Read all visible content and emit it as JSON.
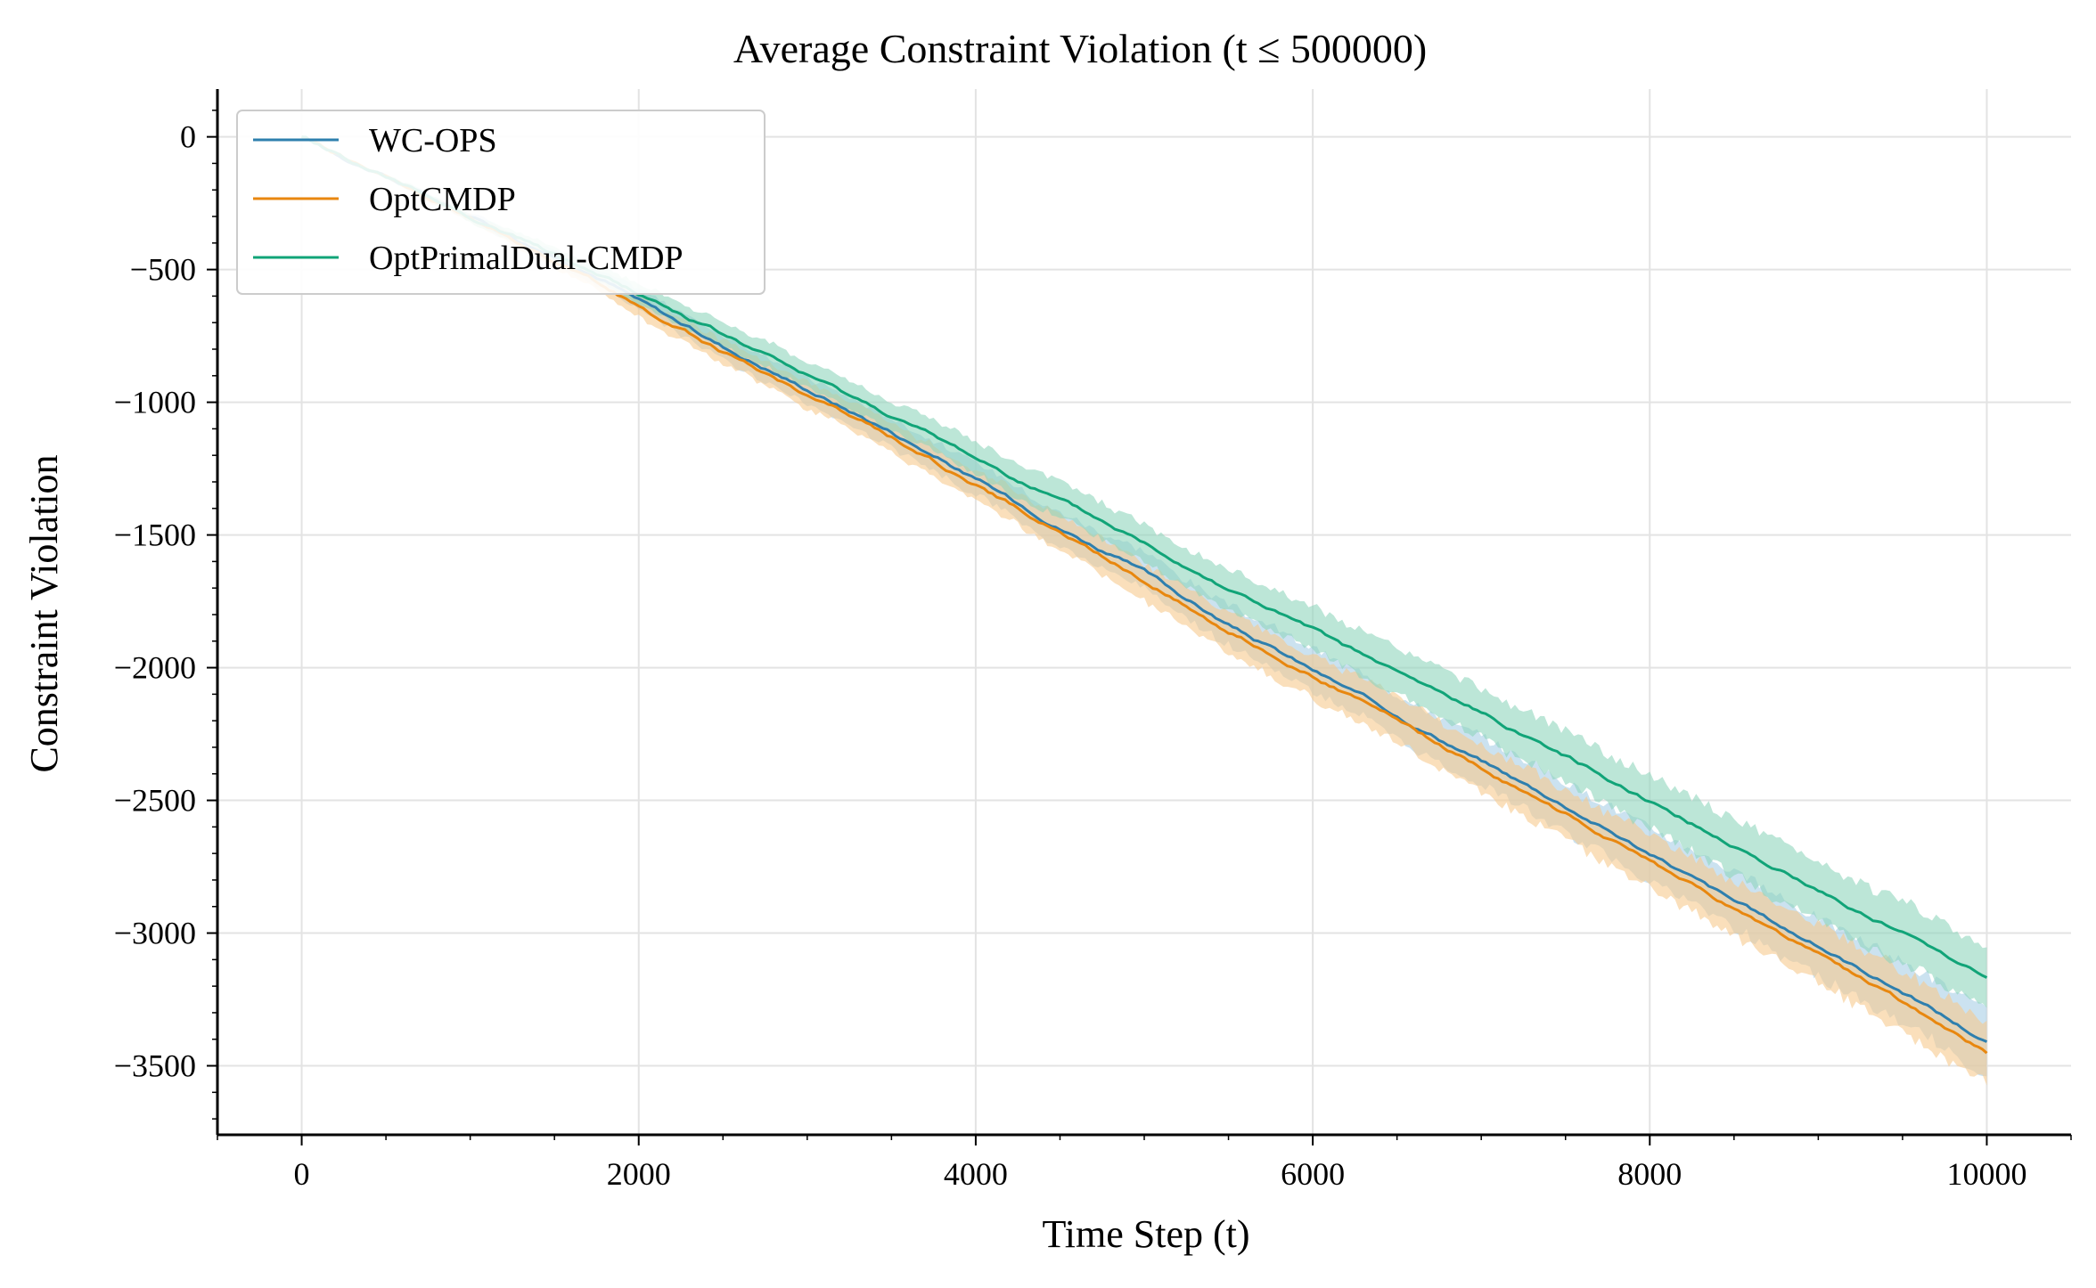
{
  "chart_data": {
    "type": "line",
    "title": "Average Constraint Violation (t ≤ 500000)",
    "xlabel": "Time Step (t)",
    "ylabel": "Constraint Violation",
    "xlim": [
      -500,
      10500
    ],
    "ylim": [
      -3760,
      180
    ],
    "xticks": [
      0,
      2000,
      4000,
      6000,
      8000,
      10000
    ],
    "xtick_labels": [
      "0",
      "2000",
      "4000",
      "6000",
      "8000",
      "10000"
    ],
    "yticks": [
      0,
      -500,
      -1000,
      -1500,
      -2000,
      -2500,
      -3000,
      -3500
    ],
    "ytick_labels": [
      "0",
      "−500",
      "−1000",
      "−1500",
      "−2000",
      "−2500",
      "−3000",
      "−3500"
    ],
    "grid": true,
    "legend_position": "top-left",
    "series": [
      {
        "name": "WC-OPS",
        "color": "#2e7fae",
        "band_color": "#a9cfe6",
        "x": [
          0,
          1000,
          1800,
          2000,
          2500,
          3000,
          3500,
          4000,
          4500,
          5000,
          5500,
          6000,
          6500,
          7000,
          7500,
          8000,
          8500,
          9000,
          9500,
          10000
        ],
        "y": [
          0,
          -300,
          -540,
          -615,
          -790,
          -950,
          -1110,
          -1290,
          -1470,
          -1640,
          -1840,
          -2010,
          -2180,
          -2350,
          -2520,
          -2700,
          -2880,
          -3050,
          -3220,
          -3410
        ],
        "band": [
          0,
          15,
          30,
          40,
          45,
          50,
          55,
          60,
          65,
          70,
          75,
          80,
          85,
          90,
          95,
          100,
          105,
          110,
          115,
          120
        ]
      },
      {
        "name": "OptCMDP",
        "color": "#e8870f",
        "band_color": "#f7c98e",
        "x": [
          0,
          1000,
          1800,
          2000,
          2500,
          3000,
          3500,
          4000,
          4500,
          5000,
          5500,
          6000,
          6500,
          7000,
          7500,
          8000,
          8500,
          9000,
          9500,
          10000
        ],
        "y": [
          0,
          -310,
          -560,
          -640,
          -810,
          -970,
          -1130,
          -1310,
          -1490,
          -1670,
          -1860,
          -2030,
          -2200,
          -2380,
          -2550,
          -2730,
          -2910,
          -3080,
          -3260,
          -3450
        ],
        "band": [
          0,
          15,
          30,
          40,
          45,
          50,
          55,
          60,
          65,
          70,
          75,
          80,
          85,
          90,
          95,
          100,
          105,
          110,
          115,
          120
        ]
      },
      {
        "name": "OptPrimalDual-CMDP",
        "color": "#11a478",
        "band_color": "#8fd6bd",
        "x": [
          0,
          1000,
          1800,
          2000,
          2500,
          3000,
          3500,
          4000,
          4500,
          5000,
          5500,
          6000,
          6500,
          7000,
          7500,
          8000,
          8500,
          9000,
          9500,
          10000
        ],
        "y": [
          0,
          -300,
          -530,
          -590,
          -745,
          -900,
          -1050,
          -1210,
          -1370,
          -1530,
          -1700,
          -1860,
          -2020,
          -2170,
          -2330,
          -2500,
          -2670,
          -2840,
          -3000,
          -3160
        ],
        "band": [
          0,
          15,
          30,
          40,
          45,
          50,
          55,
          60,
          65,
          70,
          75,
          80,
          85,
          90,
          95,
          100,
          105,
          110,
          115,
          120
        ]
      }
    ]
  }
}
